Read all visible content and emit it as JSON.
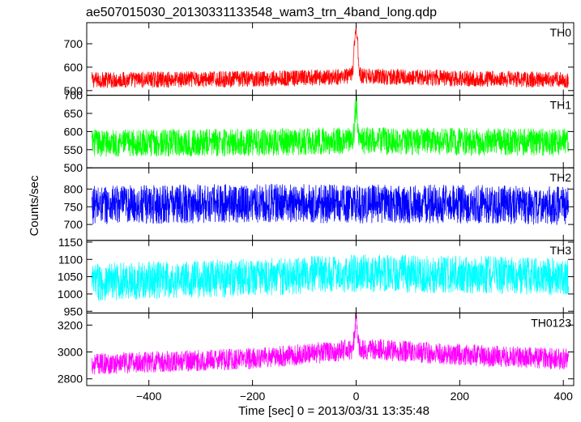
{
  "title": "ae507015030_20130331133548_wam3_trn_4band_long.qdp",
  "chart_data": [
    {
      "type": "line",
      "panel_label": "TH0",
      "color": "#ff0000",
      "ylim": [
        480,
        790
      ],
      "yticks": [
        500,
        600,
        700
      ],
      "series": [
        {
          "baseline_points": [
            [
              -510,
              545
            ],
            [
              -300,
              548
            ],
            [
              -100,
              553
            ],
            [
              0,
              562
            ],
            [
              200,
              552
            ],
            [
              400,
              545
            ],
            [
              410,
              545
            ]
          ],
          "noise_half_range": 35,
          "spike": {
            "x": 0,
            "value": 790,
            "width": 12
          }
        }
      ]
    },
    {
      "type": "line",
      "panel_label": "TH1",
      "color": "#00ff00",
      "ylim": [
        500,
        700
      ],
      "yticks": [
        500,
        550,
        600,
        650,
        700
      ],
      "series": [
        {
          "baseline_points": [
            [
              -510,
              568
            ],
            [
              -200,
              570
            ],
            [
              0,
              575
            ],
            [
              200,
              572
            ],
            [
              410,
              570
            ]
          ],
          "noise_half_range": 38,
          "spike": {
            "x": 0,
            "value": 690,
            "width": 8
          }
        }
      ]
    },
    {
      "type": "line",
      "panel_label": "TH2",
      "color": "#0000ff",
      "ylim": [
        655,
        860
      ],
      "yticks": [
        700,
        750,
        800
      ],
      "series": [
        {
          "baseline_points": [
            [
              -510,
              755
            ],
            [
              -200,
              760
            ],
            [
              0,
              758
            ],
            [
              200,
              758
            ],
            [
              410,
              752
            ]
          ],
          "noise_half_range": 55
        }
      ]
    },
    {
      "type": "line",
      "panel_label": "TH3",
      "color": "#00ffff",
      "ylim": [
        945,
        1155
      ],
      "yticks": [
        950,
        1000,
        1050,
        1100,
        1150
      ],
      "series": [
        {
          "baseline_points": [
            [
              -510,
              1035
            ],
            [
              -250,
              1045
            ],
            [
              0,
              1060
            ],
            [
              250,
              1055
            ],
            [
              410,
              1050
            ]
          ],
          "noise_half_range": 55
        }
      ]
    },
    {
      "type": "line",
      "panel_label": "TH0123",
      "color": "#ff00ff",
      "ylim": [
        2750,
        3290
      ],
      "yticks": [
        2800,
        3000,
        3200
      ],
      "series": [
        {
          "baseline_points": [
            [
              -510,
              2910
            ],
            [
              -200,
              2950
            ],
            [
              -50,
              3000
            ],
            [
              0,
              3025
            ],
            [
              200,
              2980
            ],
            [
              410,
              2945
            ]
          ],
          "noise_half_range": 80,
          "spike": {
            "x": 0,
            "value": 3290,
            "width": 10
          }
        }
      ]
    }
  ],
  "shared_axes": {
    "xlim": [
      -520,
      420
    ],
    "xticks": [
      -400,
      -200,
      0,
      200,
      400
    ],
    "xlabel": "Time [sec] 0 = 2013/03/31 13:35:48",
    "ylabel": "Counts/sec"
  }
}
